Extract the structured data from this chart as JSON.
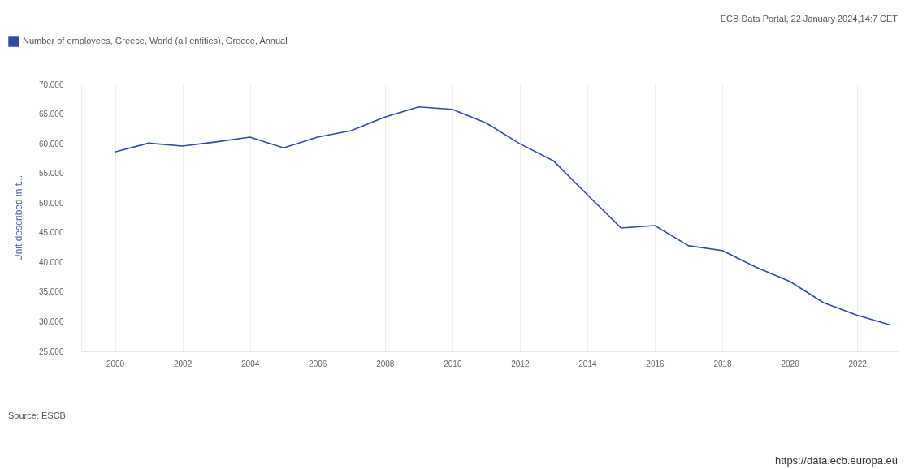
{
  "chart_data": {
    "type": "line",
    "ylabel": "Unit described in t...",
    "x": [
      2000,
      2001,
      2002,
      2003,
      2004,
      2005,
      2006,
      2007,
      2008,
      2009,
      2010,
      2011,
      2012,
      2013,
      2014,
      2015,
      2016,
      2017,
      2018,
      2019,
      2020,
      2021,
      2022,
      2023
    ],
    "series": [
      {
        "name": "Number of employees, Greece, World (all entities), Greece, Annual",
        "color": "#2f4aa8",
        "values": [
          58600,
          60100,
          59600,
          60300,
          61100,
          59300,
          61100,
          62200,
          64500,
          66200,
          65800,
          63500,
          60000,
          57100,
          51400,
          45800,
          46200,
          42800,
          42000,
          39200,
          36800,
          33200,
          31100,
          29400
        ]
      }
    ],
    "xlim": [
      1999,
      2023.2
    ],
    "xticks": [
      2000,
      2002,
      2004,
      2006,
      2008,
      2010,
      2012,
      2014,
      2016,
      2018,
      2020,
      2022
    ],
    "ylim": [
      25000,
      70000
    ],
    "yticks": [
      {
        "value": 25000,
        "label": "25.000"
      },
      {
        "value": 30000,
        "label": "30.000"
      },
      {
        "value": 35000,
        "label": "35.000"
      },
      {
        "value": 40000,
        "label": "40.000"
      },
      {
        "value": 45000,
        "label": "45.000"
      },
      {
        "value": 50000,
        "label": "50.000"
      },
      {
        "value": 55000,
        "label": "55.000"
      },
      {
        "value": 60000,
        "label": "60.000"
      },
      {
        "value": 65000,
        "label": "65.000"
      },
      {
        "value": 70000,
        "label": "70.000"
      }
    ],
    "grid": "x",
    "legend": "top left",
    "marker": "none",
    "line_style": "solid",
    "annotations": [
      "ECB Data Portal, 22 January 2024,14:7 CET",
      "Source: ESCB",
      "https://data.ecb.europa.eu"
    ]
  }
}
